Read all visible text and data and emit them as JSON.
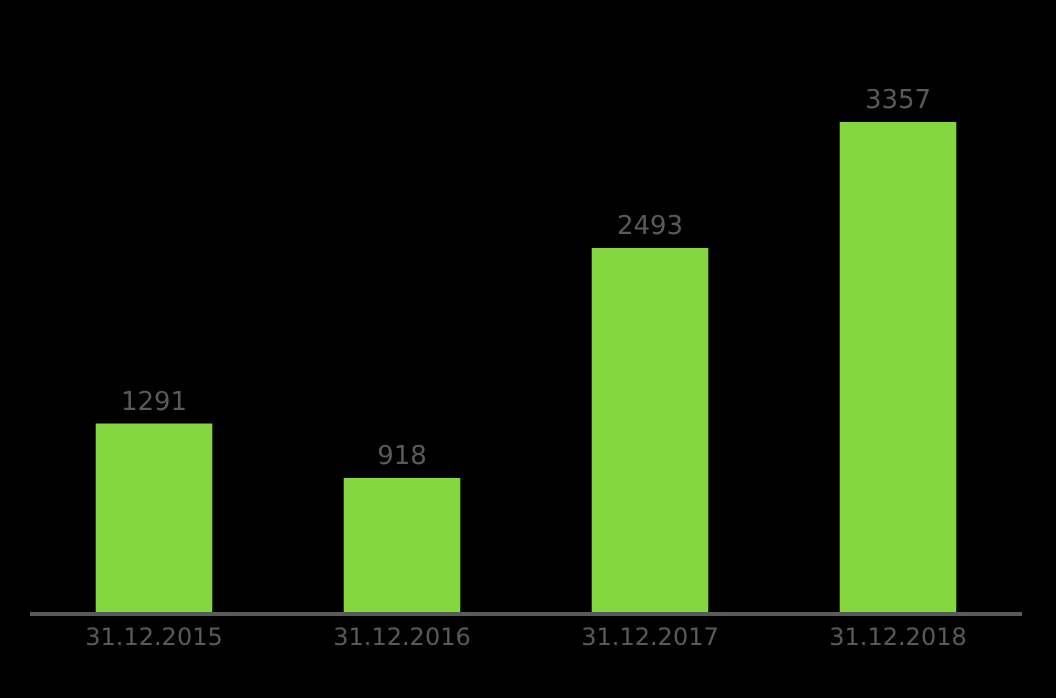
{
  "chart_data": {
    "type": "bar",
    "categories": [
      "31.12.2015",
      "31.12.2016",
      "31.12.2017",
      "31.12.2018"
    ],
    "values": [
      1291,
      918,
      2493,
      3357
    ],
    "color": "#84d83f",
    "data_labels": true,
    "grid": false,
    "legend": false
  }
}
